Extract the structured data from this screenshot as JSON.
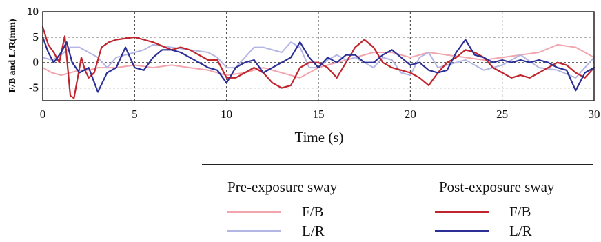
{
  "chart_data": {
    "type": "line",
    "xlabel": "Time (s)",
    "ylabel": "F/B and L/R(mm)",
    "xlim": [
      0,
      30
    ],
    "ylim": [
      -7.5,
      10
    ],
    "xticks": [
      "0",
      "5",
      "10",
      "15",
      "20",
      "25",
      "30"
    ],
    "yticks": [
      "10",
      "5",
      "0",
      "-5"
    ],
    "grid": true,
    "legend": {
      "placement": "bottom-right",
      "groups": [
        {
          "title": "Pre-exposure sway",
          "entries": [
            "F/B",
            "L/R"
          ]
        },
        {
          "title": "Post-exposure sway",
          "entries": [
            "F/B",
            "L/R"
          ]
        }
      ]
    },
    "series": [
      {
        "name": "Pre-exposure sway F/B",
        "color": "#f2a5ad",
        "x": [
          0,
          0.5,
          1,
          1.5,
          2,
          2.5,
          3,
          4,
          5,
          6,
          7,
          8,
          9,
          10,
          11,
          12,
          13,
          14,
          15,
          16,
          17,
          18,
          19,
          20,
          21,
          22,
          23,
          24,
          25,
          26,
          27,
          28,
          29,
          30
        ],
        "y": [
          -1,
          -2,
          -2.5,
          -2,
          -1.5,
          -1.5,
          -1,
          -1,
          -0.5,
          -1,
          -0.5,
          -1,
          -1.5,
          -2.5,
          -2,
          -1,
          -2,
          -3,
          -1,
          0,
          1,
          2,
          2,
          1,
          2,
          1.5,
          1,
          0.5,
          1,
          1.5,
          2,
          3.5,
          3,
          1
        ]
      },
      {
        "name": "Pre-exposure sway L/R",
        "color": "#b3b5e3",
        "x": [
          0,
          0.5,
          1,
          1.5,
          2,
          2.5,
          3,
          3.5,
          4,
          5,
          5.5,
          6,
          7,
          8,
          9,
          9.5,
          10,
          10.5,
          11,
          11.5,
          12,
          13,
          13.5,
          14,
          14.5,
          15,
          15.5,
          16,
          16.5,
          17,
          17.5,
          18,
          18.5,
          19,
          19.5,
          20,
          20.5,
          21,
          21.5,
          22,
          23,
          24,
          25,
          26,
          27,
          28,
          29,
          29.5,
          30
        ],
        "y": [
          1,
          0.5,
          1.5,
          3,
          3,
          2,
          1,
          -1,
          1,
          2,
          2.5,
          3.5,
          3,
          2.5,
          2,
          1,
          -1,
          -1,
          1,
          3,
          3,
          2,
          4,
          3,
          -1,
          -1,
          0.5,
          1.5,
          0.5,
          1,
          0,
          -1,
          1,
          0.5,
          -2,
          -2.5,
          1,
          2,
          -1,
          -0.5,
          0.5,
          -1.5,
          -0.5,
          1.5,
          -1,
          -1.5,
          -3,
          -1,
          1
        ]
      },
      {
        "name": "Post-exposure sway F/B",
        "color": "#c0242c",
        "x": [
          0,
          0.3,
          0.6,
          0.9,
          1.2,
          1.5,
          1.7,
          1.9,
          2.1,
          2.3,
          2.5,
          2.8,
          3.2,
          3.6,
          4,
          5,
          5.5,
          6,
          7,
          7.5,
          8,
          8.5,
          9,
          9.5,
          10,
          10.5,
          11,
          11.5,
          12,
          12.5,
          13,
          13.5,
          14,
          14.5,
          15,
          15.5,
          16,
          16.5,
          17,
          17.5,
          18,
          18.5,
          19,
          19.5,
          20,
          20.5,
          21,
          21.5,
          22,
          22.5,
          23,
          23.5,
          24,
          24.5,
          25,
          25.5,
          26,
          26.5,
          27,
          27.5,
          28,
          28.5,
          29,
          29.5,
          30
        ],
        "y": [
          7,
          3.5,
          2,
          0,
          5.2,
          -6.5,
          -7,
          -3,
          1,
          -1.5,
          -3,
          -2,
          3,
          4,
          4.5,
          5,
          4.5,
          4,
          2.5,
          3,
          2.5,
          1.5,
          0.5,
          0.5,
          -3,
          -3,
          -2,
          -1,
          -2,
          -4,
          -5,
          -4.5,
          -1,
          0,
          0,
          -1,
          -3,
          0,
          3,
          4.5,
          3,
          0,
          -1,
          -1.5,
          -2,
          -3,
          -4.5,
          -2,
          0,
          1,
          2.5,
          2,
          1,
          -1,
          -2,
          -3,
          -2.5,
          -3,
          -2,
          -1,
          0,
          -0.5,
          -2,
          -3,
          -1
        ]
      },
      {
        "name": "Post-exposure sway L/R",
        "color": "#2b2f96",
        "x": [
          0,
          0.3,
          0.6,
          1,
          1.3,
          1.6,
          2,
          2.5,
          3,
          3.5,
          4,
          4.5,
          5,
          5.5,
          6,
          6.5,
          7,
          7.5,
          8,
          8.5,
          9,
          9.5,
          10,
          10.5,
          11,
          11.5,
          12,
          12.5,
          13,
          13.5,
          14,
          14.5,
          15,
          15.5,
          16,
          16.5,
          17,
          17.5,
          18,
          18.5,
          19,
          19.5,
          20,
          20.5,
          21,
          21.5,
          22,
          22.5,
          23,
          23.5,
          24,
          24.5,
          25,
          25.5,
          26,
          26.5,
          27,
          27.5,
          28,
          28.5,
          29,
          29.5,
          30
        ],
        "y": [
          5,
          2,
          0,
          2,
          4,
          0,
          -2,
          -1,
          -5.8,
          -2,
          -1,
          3,
          -1,
          -1.5,
          1,
          2.5,
          2.5,
          2,
          1,
          0,
          -1,
          -1.5,
          -4,
          -1,
          0,
          0.5,
          -2,
          -1,
          0,
          1,
          4,
          1,
          -1,
          1,
          0,
          1.5,
          1.5,
          0,
          0,
          1.5,
          2.5,
          1,
          -0.5,
          0,
          -1.5,
          -2,
          -1.5,
          2,
          4.5,
          1.5,
          1,
          0,
          0.5,
          0,
          0.5,
          0,
          0.5,
          0,
          -1,
          -1.5,
          -5.5,
          -2,
          -1
        ]
      }
    ]
  }
}
